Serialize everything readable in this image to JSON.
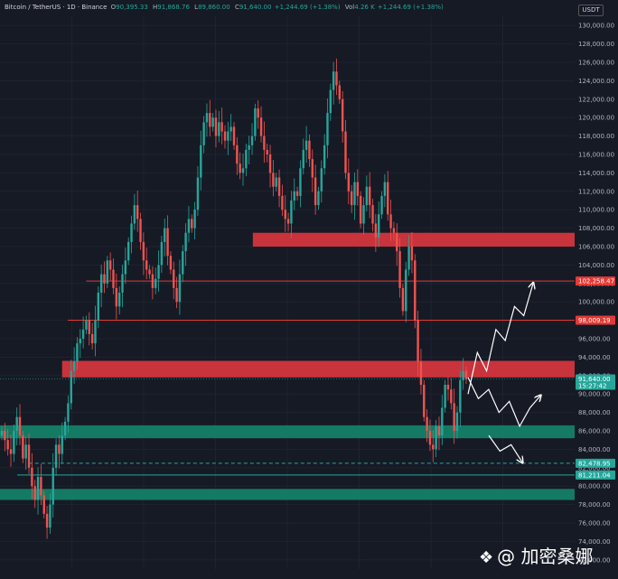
{
  "header": {
    "symbol": "Bitcoin / TetherUS · 1D · Binance",
    "open_label": "O",
    "open": "90,395.33",
    "high_label": "H",
    "high": "91,868.76",
    "low_label": "L",
    "low": "89,860.00",
    "close_label": "C",
    "close": "91,640.00",
    "change": "+1,244.69 (+1.38%)",
    "vol_label": "Vol",
    "vol": "4.26 K",
    "vol_change": "+1,244.69 (+1.38%)"
  },
  "currency": "USDT",
  "watermark": "@ 加密桑娜",
  "colors": {
    "background": "#161a25",
    "up": "#26a69a",
    "down": "#ef5350",
    "resistance_zone": "#c9333b",
    "support_zone": "#147a63",
    "resistance_line": "#e53935",
    "support_line": "#26a69a",
    "arrow": "#ffffff"
  },
  "chart_data": {
    "type": "candlestick",
    "ylim": [
      71000,
      131000
    ],
    "y_ticks": [
      "72,000.00",
      "74,000.00",
      "76,000.00",
      "78,000.00",
      "80,000.00",
      "82,000.00",
      "84,000.00",
      "86,000.00",
      "88,000.00",
      "90,000.00",
      "92,000.00",
      "94,000.00",
      "96,000.00",
      "98,000.00",
      "100,000.00",
      "102,000.00",
      "104,000.00",
      "106,000.00",
      "108,000.00",
      "110,000.00",
      "112,000.00",
      "114,000.00",
      "116,000.00",
      "118,000.00",
      "120,000.00",
      "122,000.00",
      "124,000.00",
      "126,000.00",
      "128,000.00",
      "130,000.00"
    ],
    "price_markers": [
      {
        "label": "102,258.47",
        "value": 102258.47,
        "color": "#e53935"
      },
      {
        "label": "98,009.19",
        "value": 98009.19,
        "color": "#e53935"
      },
      {
        "label": "91,640.00",
        "sub": "15:27:42",
        "value": 91640,
        "color": "#26a69a"
      },
      {
        "label": "82,478.95",
        "value": 82478.95,
        "color": "#26a69a"
      },
      {
        "label": "81,211.04",
        "value": 81211.04,
        "color": "#26a69a"
      }
    ],
    "zones": [
      {
        "kind": "resistance",
        "low": 106000,
        "high": 107500,
        "from": 0.44,
        "to": 1.0
      },
      {
        "kind": "resistance",
        "low": 91800,
        "high": 93600,
        "from": 0.108,
        "to": 1.0
      },
      {
        "kind": "support",
        "low": 85200,
        "high": 86600,
        "from": 0.0,
        "to": 1.0
      },
      {
        "kind": "support",
        "low": 78500,
        "high": 79700,
        "from": 0.0,
        "to": 1.0
      }
    ],
    "lines": [
      {
        "value": 102258.47,
        "from": 0.15,
        "style": "solid",
        "kind": "resistance"
      },
      {
        "value": 98009.19,
        "from": 0.118,
        "style": "solid",
        "kind": "resistance"
      },
      {
        "value": 82478.95,
        "from": 0.05,
        "style": "dashed",
        "kind": "support"
      },
      {
        "value": 81211.04,
        "from": 0.03,
        "style": "solid",
        "kind": "support"
      }
    ],
    "close_series": [
      86000,
      85000,
      84000,
      83500,
      86000,
      87500,
      85500,
      83000,
      84500,
      82000,
      80000,
      78500,
      81000,
      79000,
      77000,
      75500,
      78000,
      82000,
      84500,
      83500,
      85500,
      87000,
      89000,
      92500,
      93500,
      95500,
      96000,
      97000,
      98000,
      96500,
      95500,
      98000,
      101000,
      103000,
      102000,
      104500,
      103500,
      101500,
      99500,
      101000,
      103000,
      104500,
      106500,
      108500,
      110500,
      109000,
      106500,
      104500,
      103500,
      103000,
      101500,
      102500,
      104000,
      106500,
      108000,
      105000,
      103500,
      101500,
      100000,
      103000,
      105500,
      107500,
      109000,
      108000,
      110000,
      113500,
      117000,
      119500,
      120500,
      119000,
      120000,
      118000,
      119500,
      118500,
      117500,
      118500,
      119000,
      117000,
      115000,
      114000,
      114500,
      116500,
      117000,
      118000,
      121000,
      120000,
      118000,
      116500,
      116000,
      114000,
      112500,
      113500,
      111500,
      110000,
      109000,
      108500,
      111000,
      112000,
      111500,
      114500,
      116500,
      117500,
      115500,
      113500,
      110500,
      112000,
      114500,
      117000,
      120500,
      123000,
      125000,
      123500,
      122000,
      118500,
      114000,
      112000,
      110500,
      113000,
      111500,
      108500,
      110500,
      112500,
      110500,
      108500,
      107000,
      109500,
      111500,
      113000,
      109500,
      108000,
      107500,
      105500,
      101500,
      99000,
      103500,
      106000,
      104500,
      98000,
      93500,
      91000,
      87500,
      86000,
      84500,
      84000,
      86500,
      85500,
      88500,
      91000,
      90500,
      89000,
      86000,
      88000,
      91500,
      92500,
      91600
    ],
    "projections": [
      {
        "kind": "bullish",
        "points": [
          [
            90000,
            0
          ],
          [
            94500,
            1
          ],
          [
            92500,
            2
          ],
          [
            97000,
            3
          ],
          [
            95800,
            4
          ],
          [
            99500,
            5
          ],
          [
            98500,
            6
          ],
          [
            102000,
            7
          ]
        ]
      },
      {
        "kind": "bearish-bounce",
        "points": [
          [
            91800,
            0
          ],
          [
            89500,
            1
          ],
          [
            90500,
            2
          ],
          [
            88000,
            3
          ],
          [
            89200,
            4
          ],
          [
            86500,
            5
          ],
          [
            88500,
            6
          ],
          [
            89800,
            7
          ]
        ]
      },
      {
        "kind": "bearish",
        "points": [
          [
            85500,
            0
          ],
          [
            83800,
            1
          ],
          [
            84500,
            2
          ],
          [
            82600,
            3
          ]
        ]
      }
    ]
  }
}
